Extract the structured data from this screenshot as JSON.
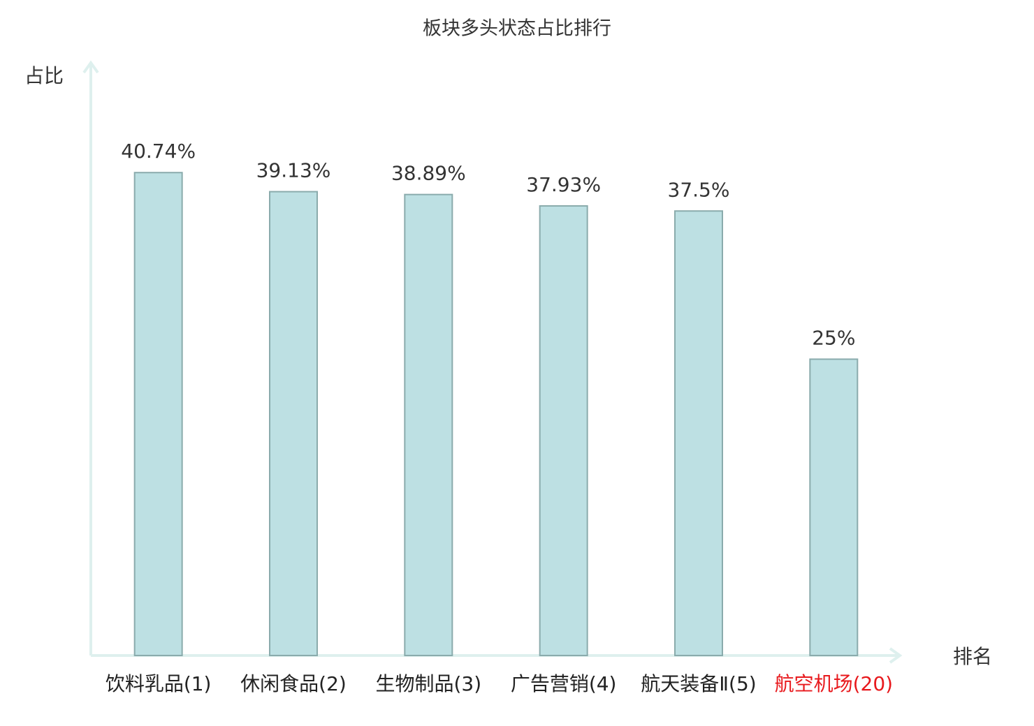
{
  "chart_data": {
    "type": "bar",
    "title": "板块多头状态占比排行",
    "y_label": "占比",
    "x_label": "排名",
    "categories": [
      "饮料乳品(1)",
      "休闲食品(2)",
      "生物制品(3)",
      "广告营销(4)",
      "航天装备Ⅱ(5)",
      "航空机场(20)"
    ],
    "category_colors": [
      "#222222",
      "#222222",
      "#222222",
      "#222222",
      "#222222",
      "#e8191d"
    ],
    "values": [
      40.74,
      39.13,
      38.89,
      37.93,
      37.5,
      25
    ],
    "value_labels": [
      "40.74%",
      "39.13%",
      "38.89%",
      "37.93%",
      "37.5%",
      "25%"
    ],
    "color": "#bde0e3",
    "edge_color": "#8aabac",
    "ylim": [
      0,
      50
    ]
  }
}
